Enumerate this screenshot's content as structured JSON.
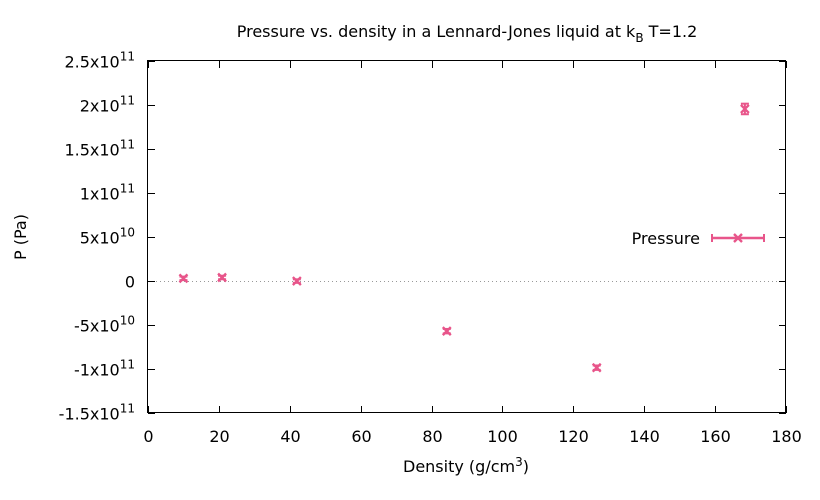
{
  "chart_data": {
    "type": "scatter",
    "title": {
      "prefix": "Pressure vs. density in a Lennard-Jones liquid at k",
      "subscript": "B",
      "suffix": " T=1.2"
    },
    "xlabel": {
      "text": "Density (g/cm",
      "superscript": "3",
      "suffix": ")"
    },
    "ylabel": "P (Pa)",
    "xlim": [
      0,
      180
    ],
    "ylim": [
      -150000000000.0,
      250000000000.0
    ],
    "xticks": [
      {
        "value": 0,
        "label": "0"
      },
      {
        "value": 20,
        "label": "20"
      },
      {
        "value": 40,
        "label": "40"
      },
      {
        "value": 60,
        "label": "60"
      },
      {
        "value": 80,
        "label": "80"
      },
      {
        "value": 100,
        "label": "100"
      },
      {
        "value": 120,
        "label": "120"
      },
      {
        "value": 140,
        "label": "140"
      },
      {
        "value": 160,
        "label": "160"
      },
      {
        "value": 180,
        "label": "180"
      }
    ],
    "yticks": [
      {
        "value": 250000000000.0,
        "mantissa": "2.5x10",
        "exp": "11"
      },
      {
        "value": 200000000000.0,
        "mantissa": "2x10",
        "exp": "11"
      },
      {
        "value": 150000000000.0,
        "mantissa": "1.5x10",
        "exp": "11"
      },
      {
        "value": 100000000000.0,
        "mantissa": "1x10",
        "exp": "11"
      },
      {
        "value": 50000000000.0,
        "mantissa": "5x10",
        "exp": "10"
      },
      {
        "value": 0,
        "mantissa": "0",
        "exp": ""
      },
      {
        "value": -50000000000.0,
        "mantissa": "-5x10",
        "exp": "10"
      },
      {
        "value": -100000000000.0,
        "mantissa": "-1x10",
        "exp": "11"
      },
      {
        "value": -150000000000.0,
        "mantissa": "-1.5x10",
        "exp": "11"
      }
    ],
    "zero_line": true,
    "legend_position": "right",
    "color": "#e8558a",
    "series": [
      {
        "name": "Pressure",
        "points": [
          {
            "x": 10.0,
            "y": 3000000000.0,
            "err": 2000000000.0
          },
          {
            "x": 20.9,
            "y": 4000000000.0,
            "err": 2000000000.0
          },
          {
            "x": 42.0,
            "y": -100000000.0,
            "err": 2000000000.0
          },
          {
            "x": 84.3,
            "y": -57000000000.0,
            "err": 2500000000.0
          },
          {
            "x": 126.6,
            "y": -98500000000.0,
            "err": 2500000000.0
          },
          {
            "x": 168.4,
            "y": 195500000000.0,
            "err": 6000000000.0
          }
        ]
      }
    ]
  }
}
